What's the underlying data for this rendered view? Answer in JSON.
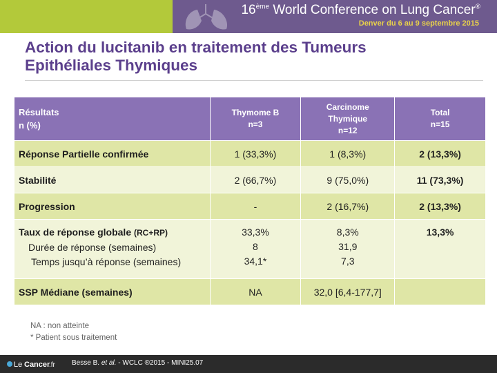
{
  "header": {
    "conference_sup": "ème",
    "conference_prefix": "16",
    "conference_name": "World Conference on Lung Cancer",
    "conference_reg": "®",
    "conference_place": "Denver du 6 au 9 septembre 2015",
    "colors": {
      "green": "#b3c93a",
      "purple": "#6e5a8e",
      "gold": "#e9d24a"
    }
  },
  "title": {
    "line1": "Action du lucitanib en traitement des Tumeurs",
    "line2": "Epithéliales Thymiques"
  },
  "table": {
    "header": {
      "label_line1": "Résultats",
      "label_line2": "n (%)",
      "col1_line1": "Thymome B",
      "col1_line2": "n=3",
      "col2_line1": "Carcinome",
      "col2_line2": "Thymique",
      "col2_line3": "n=12",
      "col3_line1": "Total",
      "col3_line2": "n=15"
    },
    "rows": {
      "partial": {
        "label": "Réponse Partielle confirmée",
        "c1": "1 (33,3%)",
        "c2": "1 (8,3%)",
        "c3": "2 (13,3%)"
      },
      "stability": {
        "label": "Stabilité",
        "c1": "2 (66,7%)",
        "c2": "9 (75,0%)",
        "c3": "11 (73,3%)"
      },
      "progression": {
        "label": "Progression",
        "c1": "-",
        "c2": "2 (16,7%)",
        "c3": "2 (13,3%)"
      },
      "response_rate": {
        "label": "Taux de réponse globale",
        "label_suffix": "(RC+RP)",
        "sub1": "Durée de réponse (semaines)",
        "sub2": "Temps jusqu’à réponse (semaines)",
        "c1_line1": "33,3%",
        "c1_line2": "8",
        "c1_line3": "34,1*",
        "c2_line1": "8,3%",
        "c2_line2": "31,9",
        "c2_line3": "7,3",
        "c3": "13,3%"
      },
      "pfs": {
        "label": "SSP Médiane (semaines)",
        "c1": "NA",
        "c2": "32,0 [6,4-177,7]",
        "c3": ""
      }
    }
  },
  "footnotes": {
    "na": "NA : non atteinte",
    "patient": "* Patient sous traitement"
  },
  "footer": {
    "logo_text_prefix": "Le ",
    "logo_text_main": "Cancer",
    "logo_text_suffix": ".fr",
    "reference_authors": "Besse B. ",
    "reference_etal": "et al.",
    "reference_rest": " - WCLC ®2015 - MINI25.07"
  }
}
